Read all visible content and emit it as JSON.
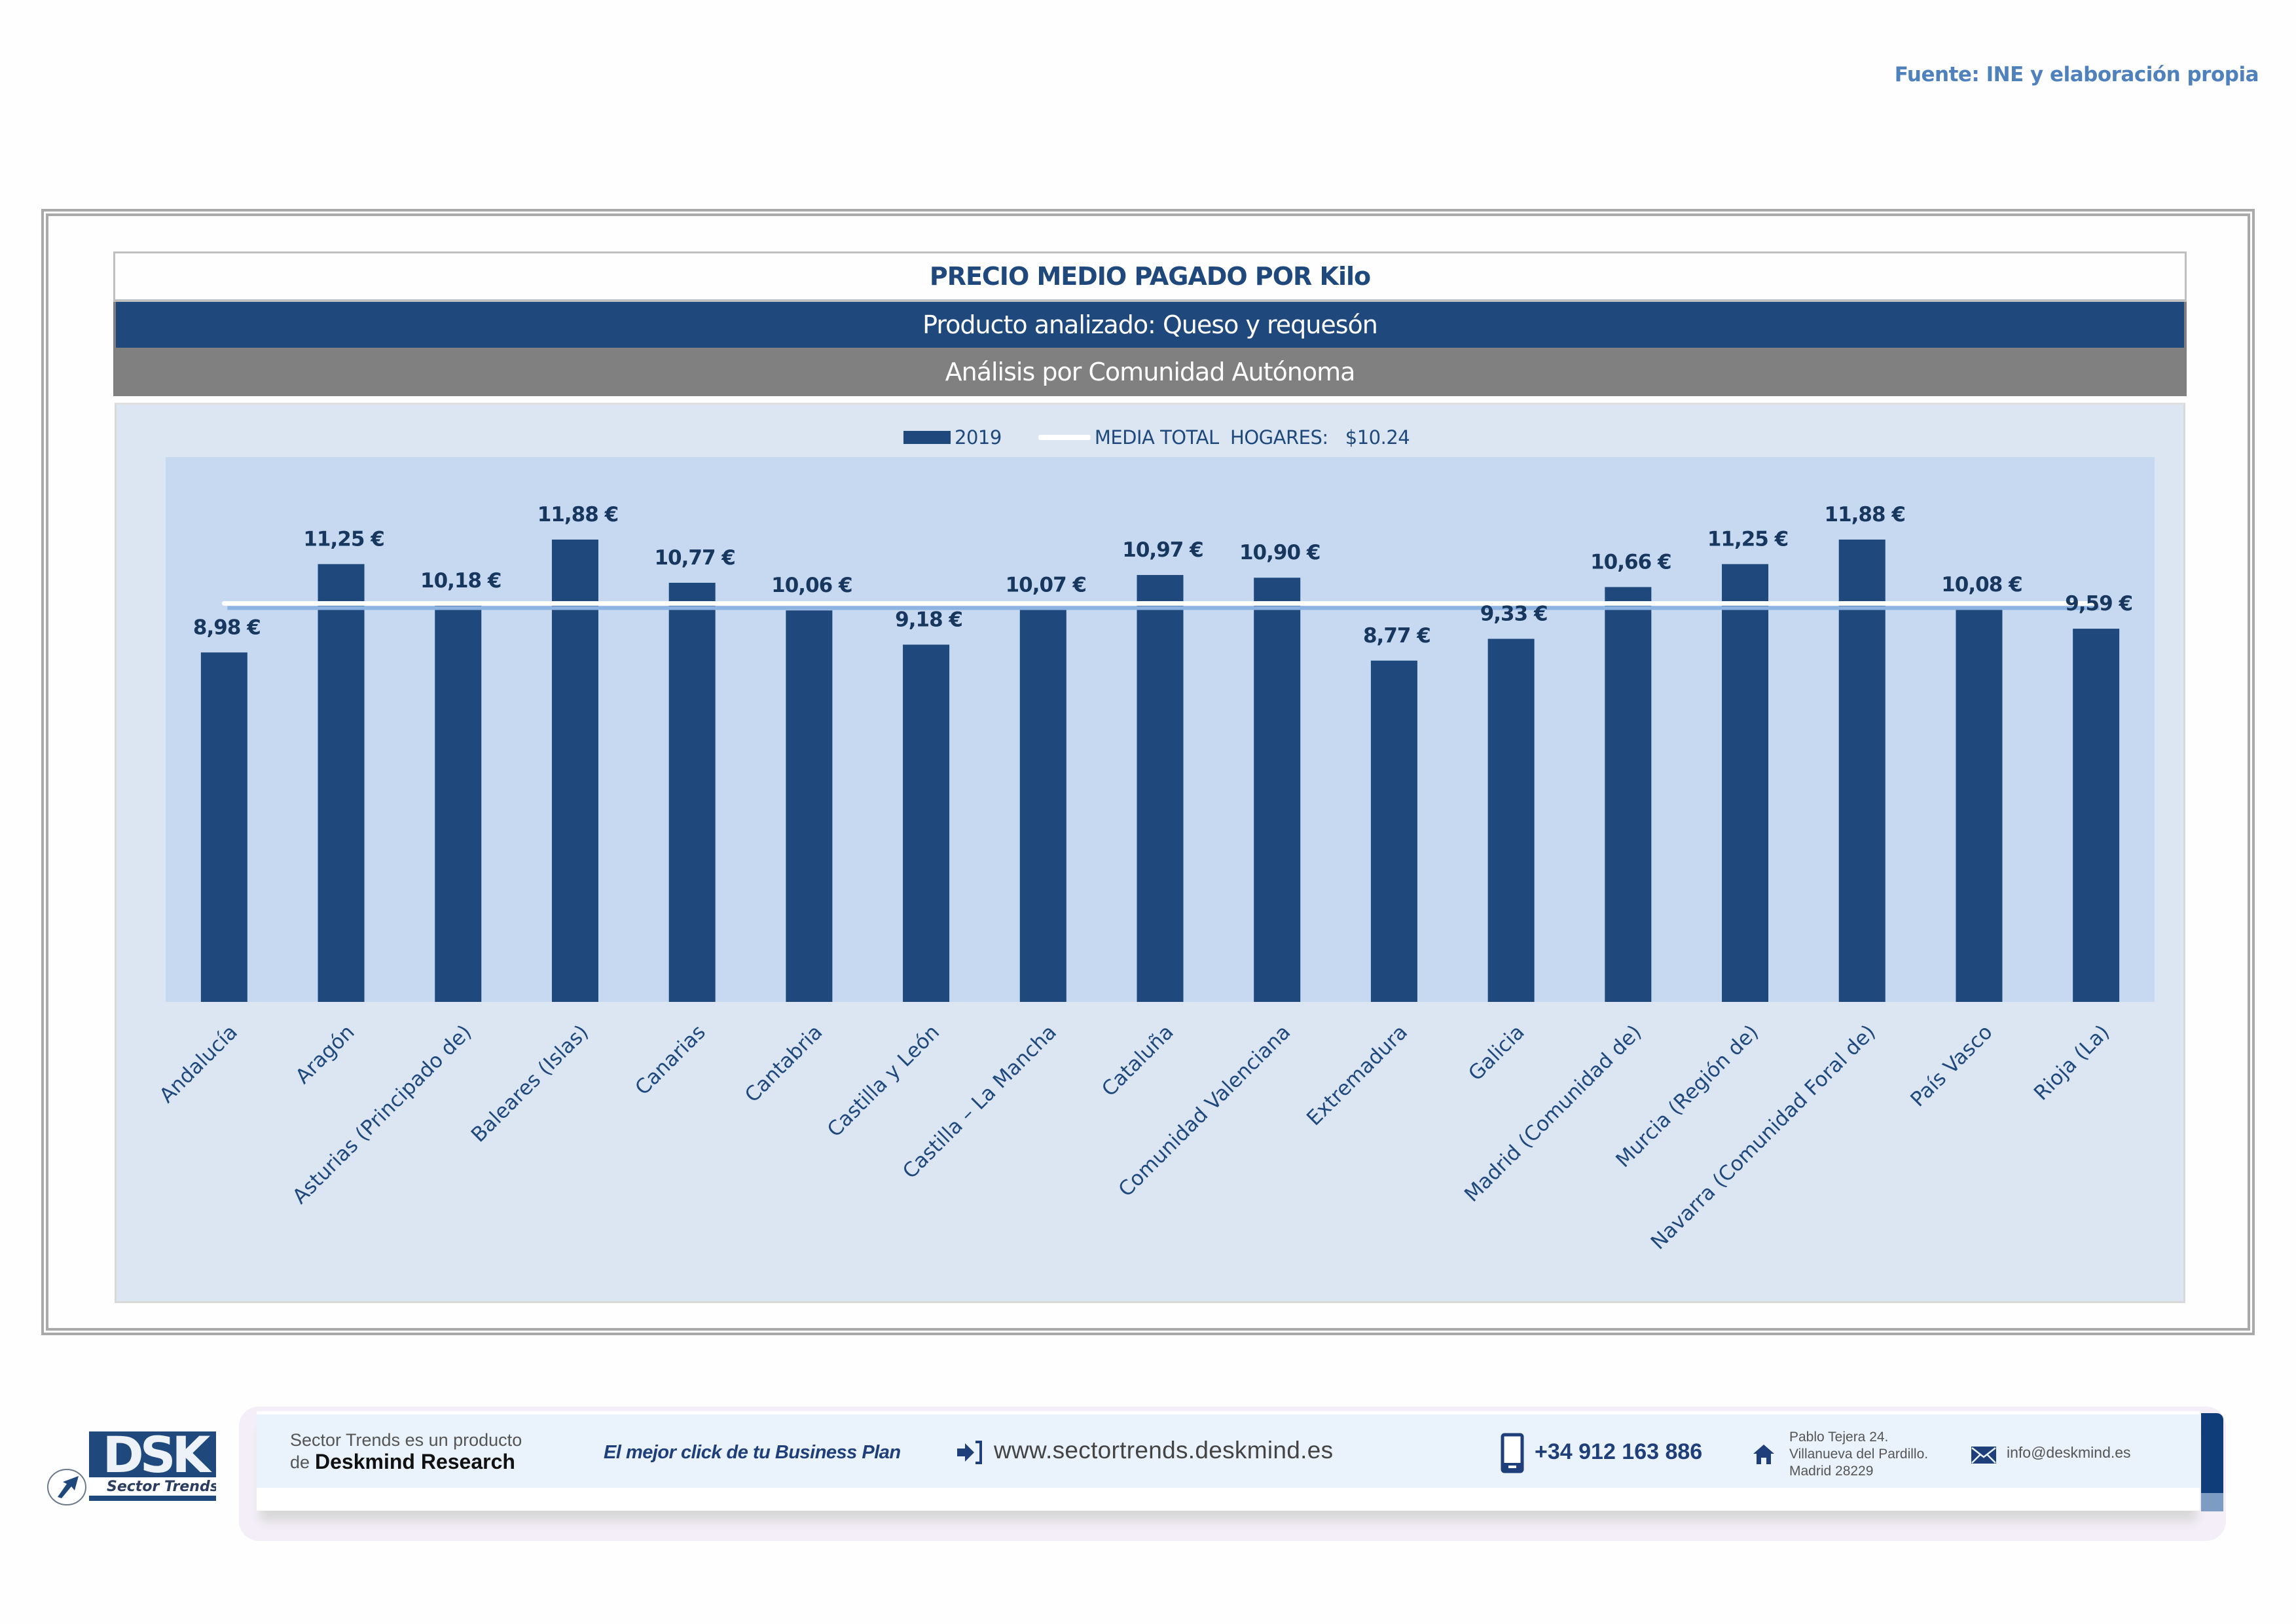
{
  "source_note": "Fuente: INE y elaboración propia",
  "header": {
    "title": "PRECIO MEDIO PAGADO POR Kilo",
    "product": "Producto analizado: Queso y requesón",
    "analysis": "Análisis por Comunidad Autónoma"
  },
  "chart_data": {
    "type": "bar",
    "title": "PRECIO MEDIO PAGADO POR Kilo",
    "xlabel": "",
    "ylabel": "",
    "ylim": [
      0,
      14
    ],
    "grid": false,
    "legend_position": "top-center",
    "legend": {
      "series_label": "2019",
      "reference_label": "MEDIA TOTAL  HOGARES:   $10.24"
    },
    "categories": [
      "Andalucía",
      "Aragón",
      "Asturias (Principado de)",
      "Baleares (Islas)",
      "Canarias",
      "Cantabria",
      "Castilla y León",
      "Castilla – La Mancha",
      "Cataluña",
      "Comunidad Valenciana",
      "Extremadura",
      "Galicia",
      "Madrid (Comunidad de)",
      "Murcia (Región de)",
      "Navarra (Comunidad Foral de)",
      "País Vasco",
      "Rioja (La)"
    ],
    "series": [
      {
        "name": "2019",
        "color": "#1f497d",
        "values": [
          8.98,
          11.25,
          10.18,
          11.88,
          10.77,
          10.06,
          9.18,
          10.07,
          10.97,
          10.9,
          8.77,
          9.33,
          10.66,
          11.25,
          11.88,
          10.08,
          9.59
        ],
        "labels": [
          "8,98 €",
          "11,25 €",
          "10,18 €",
          "11,88 €",
          "10,77 €",
          "10,06 €",
          "9,18 €",
          "10,07 €",
          "10,97 €",
          "10,90 €",
          "8,77 €",
          "9,33 €",
          "10,66 €",
          "11,25 €",
          "11,88 €",
          "10,08 €",
          "9,59 €"
        ]
      }
    ],
    "reference_line": {
      "name": "MEDIA TOTAL HOGARES",
      "value": 10.24,
      "color": "#ffffff"
    }
  },
  "colors": {
    "bar": "#1f497d",
    "plot_bg": "#c6d9f0",
    "panel_bg": "#dce6f2",
    "header_blue": "#1f497d",
    "header_gray": "#808080",
    "source_text": "#4f81bd"
  },
  "footer": {
    "logo_text": "DSK",
    "logo_subtitle": "Sector Trends",
    "product_line1": "Sector Trends es un producto",
    "product_line2_prefix": "de",
    "product_line2_brand": "Deskmind Research",
    "slogan": "El mejor click de tu Business Plan",
    "website": "www.sectortrends.deskmind.es",
    "phone": "+34 912 163 886",
    "address_line1": "Pablo Tejera 24.",
    "address_line2": "Villanueva del Pardillo.",
    "address_line3": "Madrid 28229",
    "email": "info@deskmind.es",
    "icons": {
      "website": "login-arrow-icon",
      "phone": "mobile-phone-icon",
      "address": "home-icon",
      "email": "envelope-icon"
    }
  }
}
